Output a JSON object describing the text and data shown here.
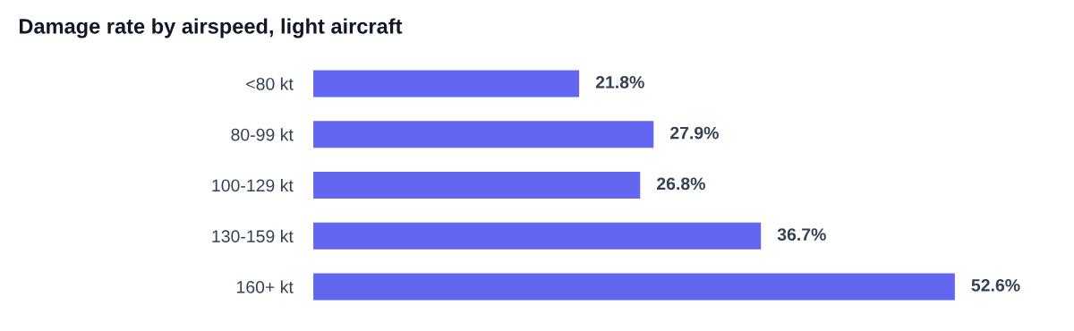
{
  "chart_data": {
    "type": "bar",
    "orientation": "horizontal",
    "title": "Damage rate by airspeed, light aircraft",
    "categories": [
      "<80 kt",
      "80-99 kt",
      "100-129 kt",
      "130-159 kt",
      "160+ kt"
    ],
    "values": [
      21.8,
      27.9,
      26.8,
      36.7,
      52.6
    ],
    "value_labels": [
      "21.8%",
      "27.9%",
      "26.8%",
      "36.7%",
      "52.6%"
    ],
    "color": "#6366f1"
  }
}
